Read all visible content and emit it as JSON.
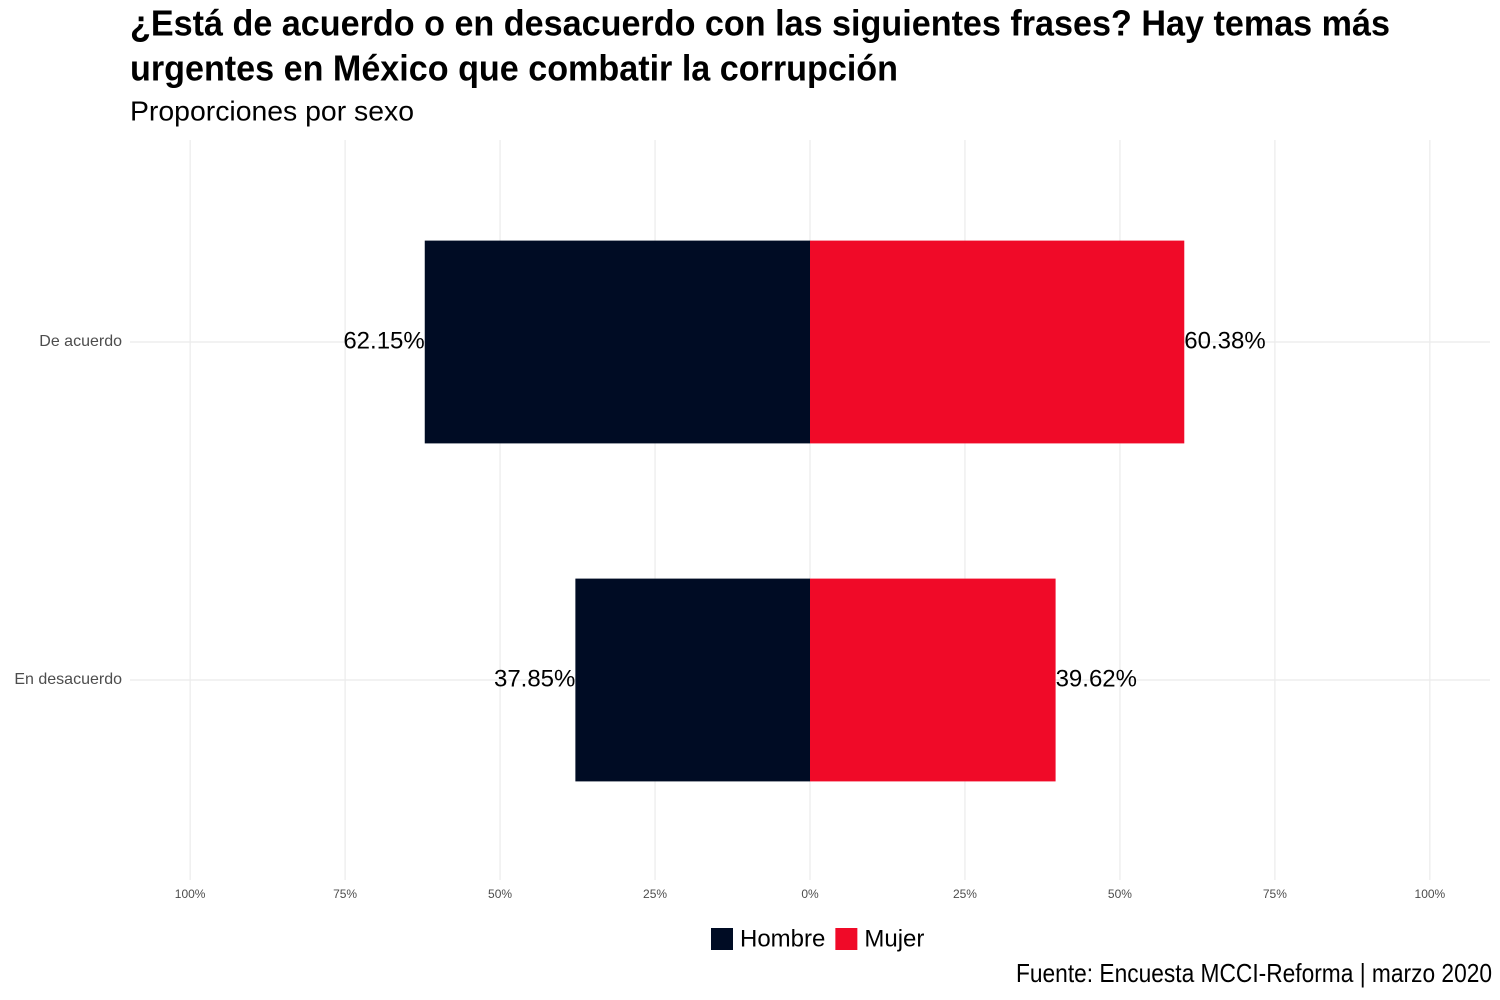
{
  "chart_data": {
    "type": "diverging_bar",
    "title": [
      "¿Está de acuerdo o en desacuerdo con las siguientes frases? Hay temas más",
      "urgentes en México que combatir la corrupción"
    ],
    "subtitle": "Proporciones por sexo",
    "caption": "Fuente: Encuesta MCCI-Reforma | marzo 2020",
    "categories": [
      "De acuerdo",
      "En desacuerdo"
    ],
    "diverging": true,
    "series": [
      {
        "name": "Hombre",
        "color": "#000c24",
        "values": [
          62.15,
          37.85
        ],
        "value_labels": [
          "62.15%",
          "37.85%"
        ]
      },
      {
        "name": "Mujer",
        "color": "#f00a28",
        "values": [
          60.38,
          39.62
        ],
        "value_labels": [
          "60.38%",
          "39.62%"
        ]
      }
    ],
    "xlim": [
      -109.7,
      109.7
    ],
    "xticks": [
      {
        "value": -100,
        "label": "100%"
      },
      {
        "value": -75,
        "label": "75%"
      },
      {
        "value": -50,
        "label": "50%"
      },
      {
        "value": -25,
        "label": "25%"
      },
      {
        "value": 0,
        "label": "0%"
      },
      {
        "value": 25,
        "label": "25%"
      },
      {
        "value": 50,
        "label": "50%"
      },
      {
        "value": 75,
        "label": "75%"
      },
      {
        "value": 100,
        "label": "100%"
      }
    ],
    "grid": true,
    "legend": "bottom"
  }
}
